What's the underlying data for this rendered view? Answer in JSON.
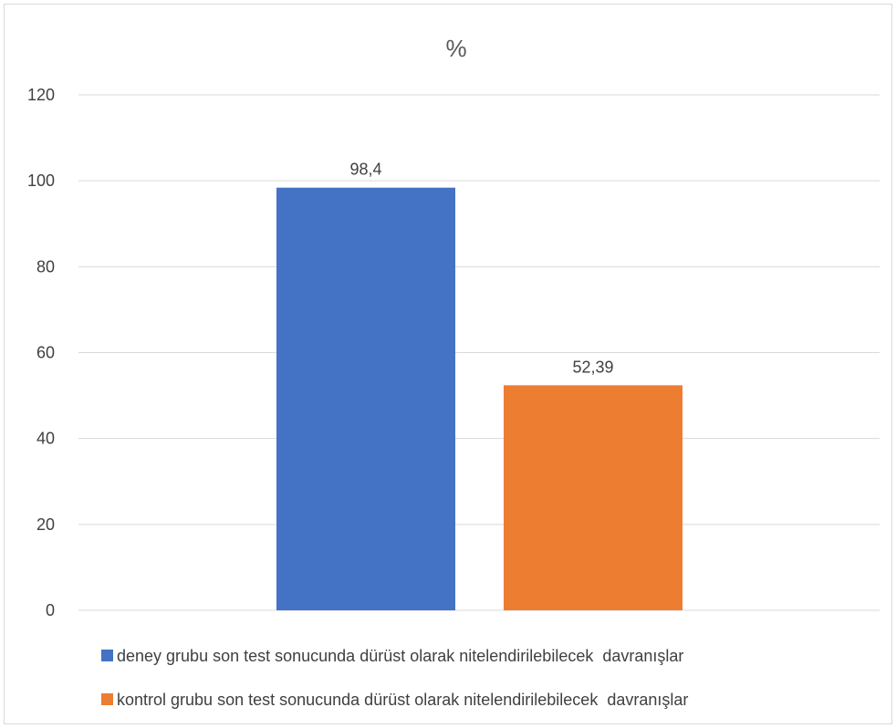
{
  "chart_data": {
    "type": "bar",
    "title": "%",
    "xlabel": "",
    "ylabel": "",
    "ylim": [
      0,
      120
    ],
    "yticks": [
      0,
      20,
      40,
      60,
      80,
      100,
      120
    ],
    "grid": true,
    "legend_position": "bottom",
    "series": [
      {
        "name": "deney grubu son test sonucunda dürüst olarak nitelendirilebilecek  davranışlar",
        "value": 98.4,
        "label": "98,4",
        "color": "#4472C4"
      },
      {
        "name": "kontrol grubu son test sonucunda dürüst olarak nitelendirilebilecek  davranışlar",
        "value": 52.39,
        "label": "52,39",
        "color": "#ED7D31"
      }
    ]
  }
}
